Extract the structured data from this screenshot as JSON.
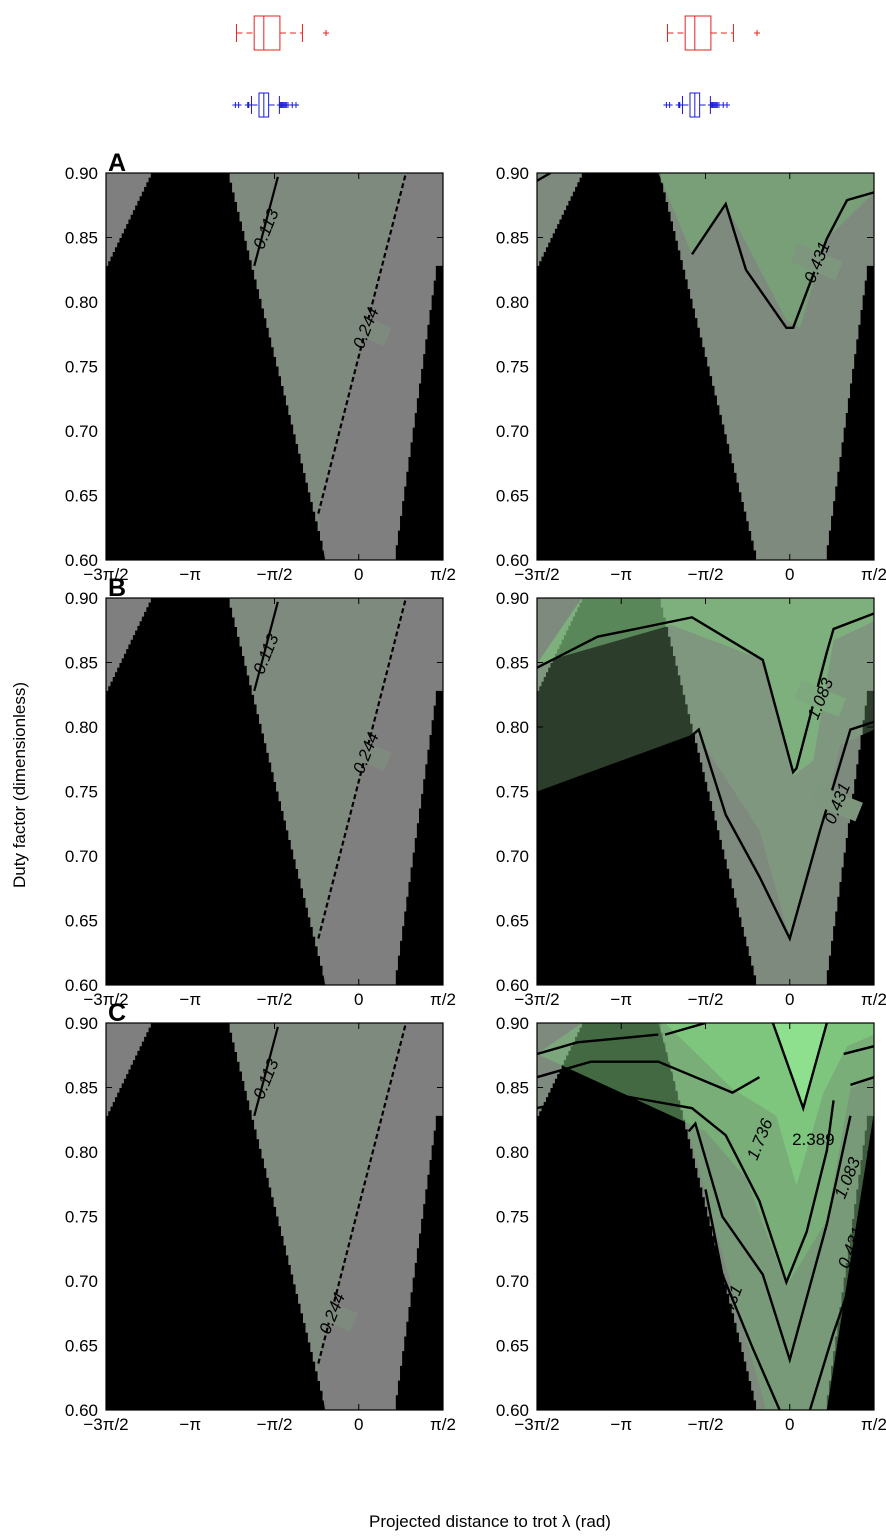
{
  "figure": {
    "ylabel": "Duty factor (dimensionless)",
    "xlabel": "Projected distance to trot λ (rad)"
  },
  "colors": {
    "boxplot_top": "#e8201e",
    "boxplot_bottom": "#1a1ad8",
    "gray_region": "#7f7f7f",
    "light_gray_region": "#8a8a8a",
    "black_region": "#000000",
    "green_region": "#7fcf7f"
  },
  "chart_data": [
    {
      "type": "contour",
      "panel": "A",
      "column": "left",
      "title": "A",
      "xlabel": "",
      "ylabel": "",
      "xlim": [
        "-3π/2",
        "π/2"
      ],
      "ylim": [
        0.6,
        0.9
      ],
      "xticks": [
        "−3π/2",
        "−π",
        "−π/2",
        "0",
        "π/2"
      ],
      "yticks": [
        "0.60",
        "0.65",
        "0.70",
        "0.75",
        "0.80",
        "0.85",
        "0.90"
      ],
      "contour_labels": [
        "0.113",
        "0.244"
      ]
    },
    {
      "type": "contour",
      "panel": "A",
      "column": "right",
      "xlim": [
        "-3π/2",
        "π/2"
      ],
      "ylim": [
        0.6,
        0.9
      ],
      "xticks": [
        "−3π/2",
        "−π",
        "−π/2",
        "0",
        "π/2"
      ],
      "yticks": [
        "0.60",
        "0.65",
        "0.70",
        "0.75",
        "0.80",
        "0.85",
        "0.90"
      ],
      "contour_labels": [
        "0.431"
      ]
    },
    {
      "type": "contour",
      "panel": "B",
      "column": "left",
      "title": "B",
      "xlim": [
        "-3π/2",
        "π/2"
      ],
      "ylim": [
        0.6,
        0.9
      ],
      "xticks": [
        "−3π/2",
        "−π",
        "−π/2",
        "0",
        "π/2"
      ],
      "yticks": [
        "0.60",
        "0.65",
        "0.70",
        "0.75",
        "0.80",
        "0.85",
        "0.90"
      ],
      "contour_labels": [
        "0.113",
        "0.244"
      ]
    },
    {
      "type": "contour",
      "panel": "B",
      "column": "right",
      "xlim": [
        "-3π/2",
        "π/2"
      ],
      "ylim": [
        0.6,
        0.9
      ],
      "xticks": [
        "−3π/2",
        "−π",
        "−π/2",
        "0",
        "π/2"
      ],
      "yticks": [
        "0.60",
        "0.65",
        "0.70",
        "0.75",
        "0.80",
        "0.85",
        "0.90"
      ],
      "contour_labels": [
        "1.083",
        "0.431"
      ]
    },
    {
      "type": "contour",
      "panel": "C",
      "column": "left",
      "title": "C",
      "xlim": [
        "-3π/2",
        "π/2"
      ],
      "ylim": [
        0.6,
        0.9
      ],
      "xticks": [
        "−3π/2",
        "−π",
        "−π/2",
        "0",
        "π/2"
      ],
      "yticks": [
        "0.60",
        "0.65",
        "0.70",
        "0.75",
        "0.80",
        "0.85",
        "0.90"
      ],
      "contour_labels": [
        "0.113",
        "0.244"
      ]
    },
    {
      "type": "contour",
      "panel": "C",
      "column": "right",
      "xlim": [
        "-3π/2",
        "π/2"
      ],
      "ylim": [
        0.6,
        0.9
      ],
      "xticks": [
        "−3π/2",
        "−π",
        "−π/2",
        "0",
        "π/2"
      ],
      "yticks": [
        "0.60",
        "0.65",
        "0.70",
        "0.75",
        "0.80",
        "0.85",
        "0.90"
      ],
      "contour_labels": [
        "1.736",
        "2.389",
        "1.083",
        "0.431",
        "0.431"
      ]
    }
  ],
  "boxplots": [
    {
      "column": "left",
      "color": "red",
      "whisker_low": -2.28,
      "q1": -1.95,
      "median": -1.77,
      "q3": -1.47,
      "whisker_high": -1.05,
      "outliers": [
        -0.61
      ]
    },
    {
      "column": "left",
      "color": "blue",
      "whisker_low": -2.0,
      "q1": -1.86,
      "median": -1.77,
      "q3": -1.68,
      "whisker_high": -1.48,
      "outliers": [
        -2.3,
        -2.24,
        -2.07,
        -2.06,
        -2.05,
        -1.47,
        -1.45,
        -1.43,
        -1.41,
        -1.39,
        -1.37,
        -1.35,
        -1.32,
        -1.24,
        -1.17
      ]
    },
    {
      "column": "right",
      "color": "red",
      "whisker_low": -2.28,
      "q1": -1.95,
      "median": -1.77,
      "q3": -1.47,
      "whisker_high": -1.05,
      "outliers": [
        -0.61
      ]
    },
    {
      "column": "right",
      "color": "blue",
      "whisker_low": -2.0,
      "q1": -1.86,
      "median": -1.77,
      "q3": -1.68,
      "whisker_high": -1.48,
      "outliers": [
        -2.3,
        -2.24,
        -2.07,
        -2.06,
        -2.05,
        -1.47,
        -1.45,
        -1.43,
        -1.41,
        -1.39,
        -1.37,
        -1.35,
        -1.32,
        -1.24,
        -1.17
      ]
    }
  ]
}
